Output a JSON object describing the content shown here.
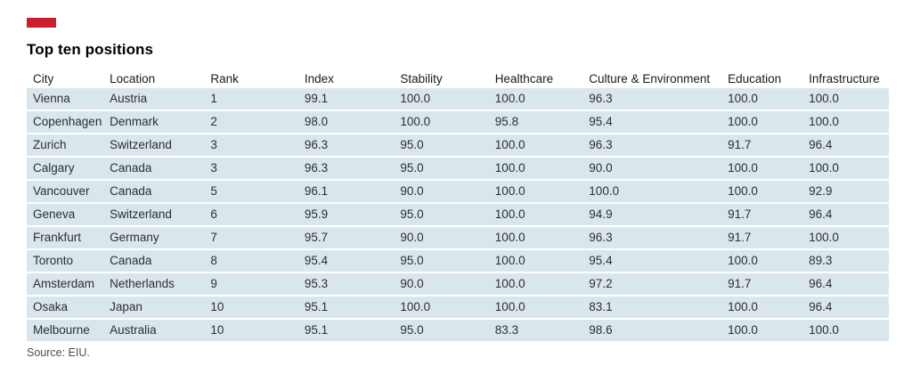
{
  "chart_data": {
    "type": "table",
    "title": "Top ten positions",
    "source": "Source: EIU.",
    "columns": [
      "City",
      "Location",
      "Rank",
      "Index",
      "Stability",
      "Healthcare",
      "Culture & Environment",
      "Education",
      "Infrastructure"
    ],
    "rows": [
      [
        "Vienna",
        "Austria",
        "1",
        "99.1",
        "100.0",
        "100.0",
        "96.3",
        "100.0",
        "100.0"
      ],
      [
        "Copenhagen",
        "Denmark",
        "2",
        "98.0",
        "100.0",
        "95.8",
        "95.4",
        "100.0",
        "100.0"
      ],
      [
        "Zurich",
        "Switzerland",
        "3",
        "96.3",
        "95.0",
        "100.0",
        "96.3",
        "91.7",
        "96.4"
      ],
      [
        "Calgary",
        "Canada",
        "3",
        "96.3",
        "95.0",
        "100.0",
        "90.0",
        "100.0",
        "100.0"
      ],
      [
        "Vancouver",
        "Canada",
        "5",
        "96.1",
        "90.0",
        "100.0",
        "100.0",
        "100.0",
        "92.9"
      ],
      [
        "Geneva",
        "Switzerland",
        "6",
        "95.9",
        "95.0",
        "100.0",
        "94.9",
        "91.7",
        "96.4"
      ],
      [
        "Frankfurt",
        "Germany",
        "7",
        "95.7",
        "90.0",
        "100.0",
        "96.3",
        "91.7",
        "100.0"
      ],
      [
        "Toronto",
        "Canada",
        "8",
        "95.4",
        "95.0",
        "100.0",
        "95.4",
        "100.0",
        "89.3"
      ],
      [
        "Amsterdam",
        "Netherlands",
        "9",
        "95.3",
        "90.0",
        "100.0",
        "97.2",
        "91.7",
        "96.4"
      ],
      [
        "Osaka",
        "Japan",
        "10",
        "95.1",
        "100.0",
        "100.0",
        "83.1",
        "100.0",
        "96.4"
      ],
      [
        "Melbourne",
        "Australia",
        "10",
        "95.1",
        "95.0",
        "83.3",
        "98.6",
        "100.0",
        "100.0"
      ]
    ],
    "layout_hints": {
      "grid": "off",
      "row_striping": "uniform-light-blue-rows-with-white-separators"
    }
  },
  "colors": {
    "brand_red": "#cc1e2c",
    "row_bg": "#d9e7ed",
    "header_text": "#1a1a1a",
    "cell_text": "#2e2e2e",
    "source_text": "#4d4d4d"
  }
}
